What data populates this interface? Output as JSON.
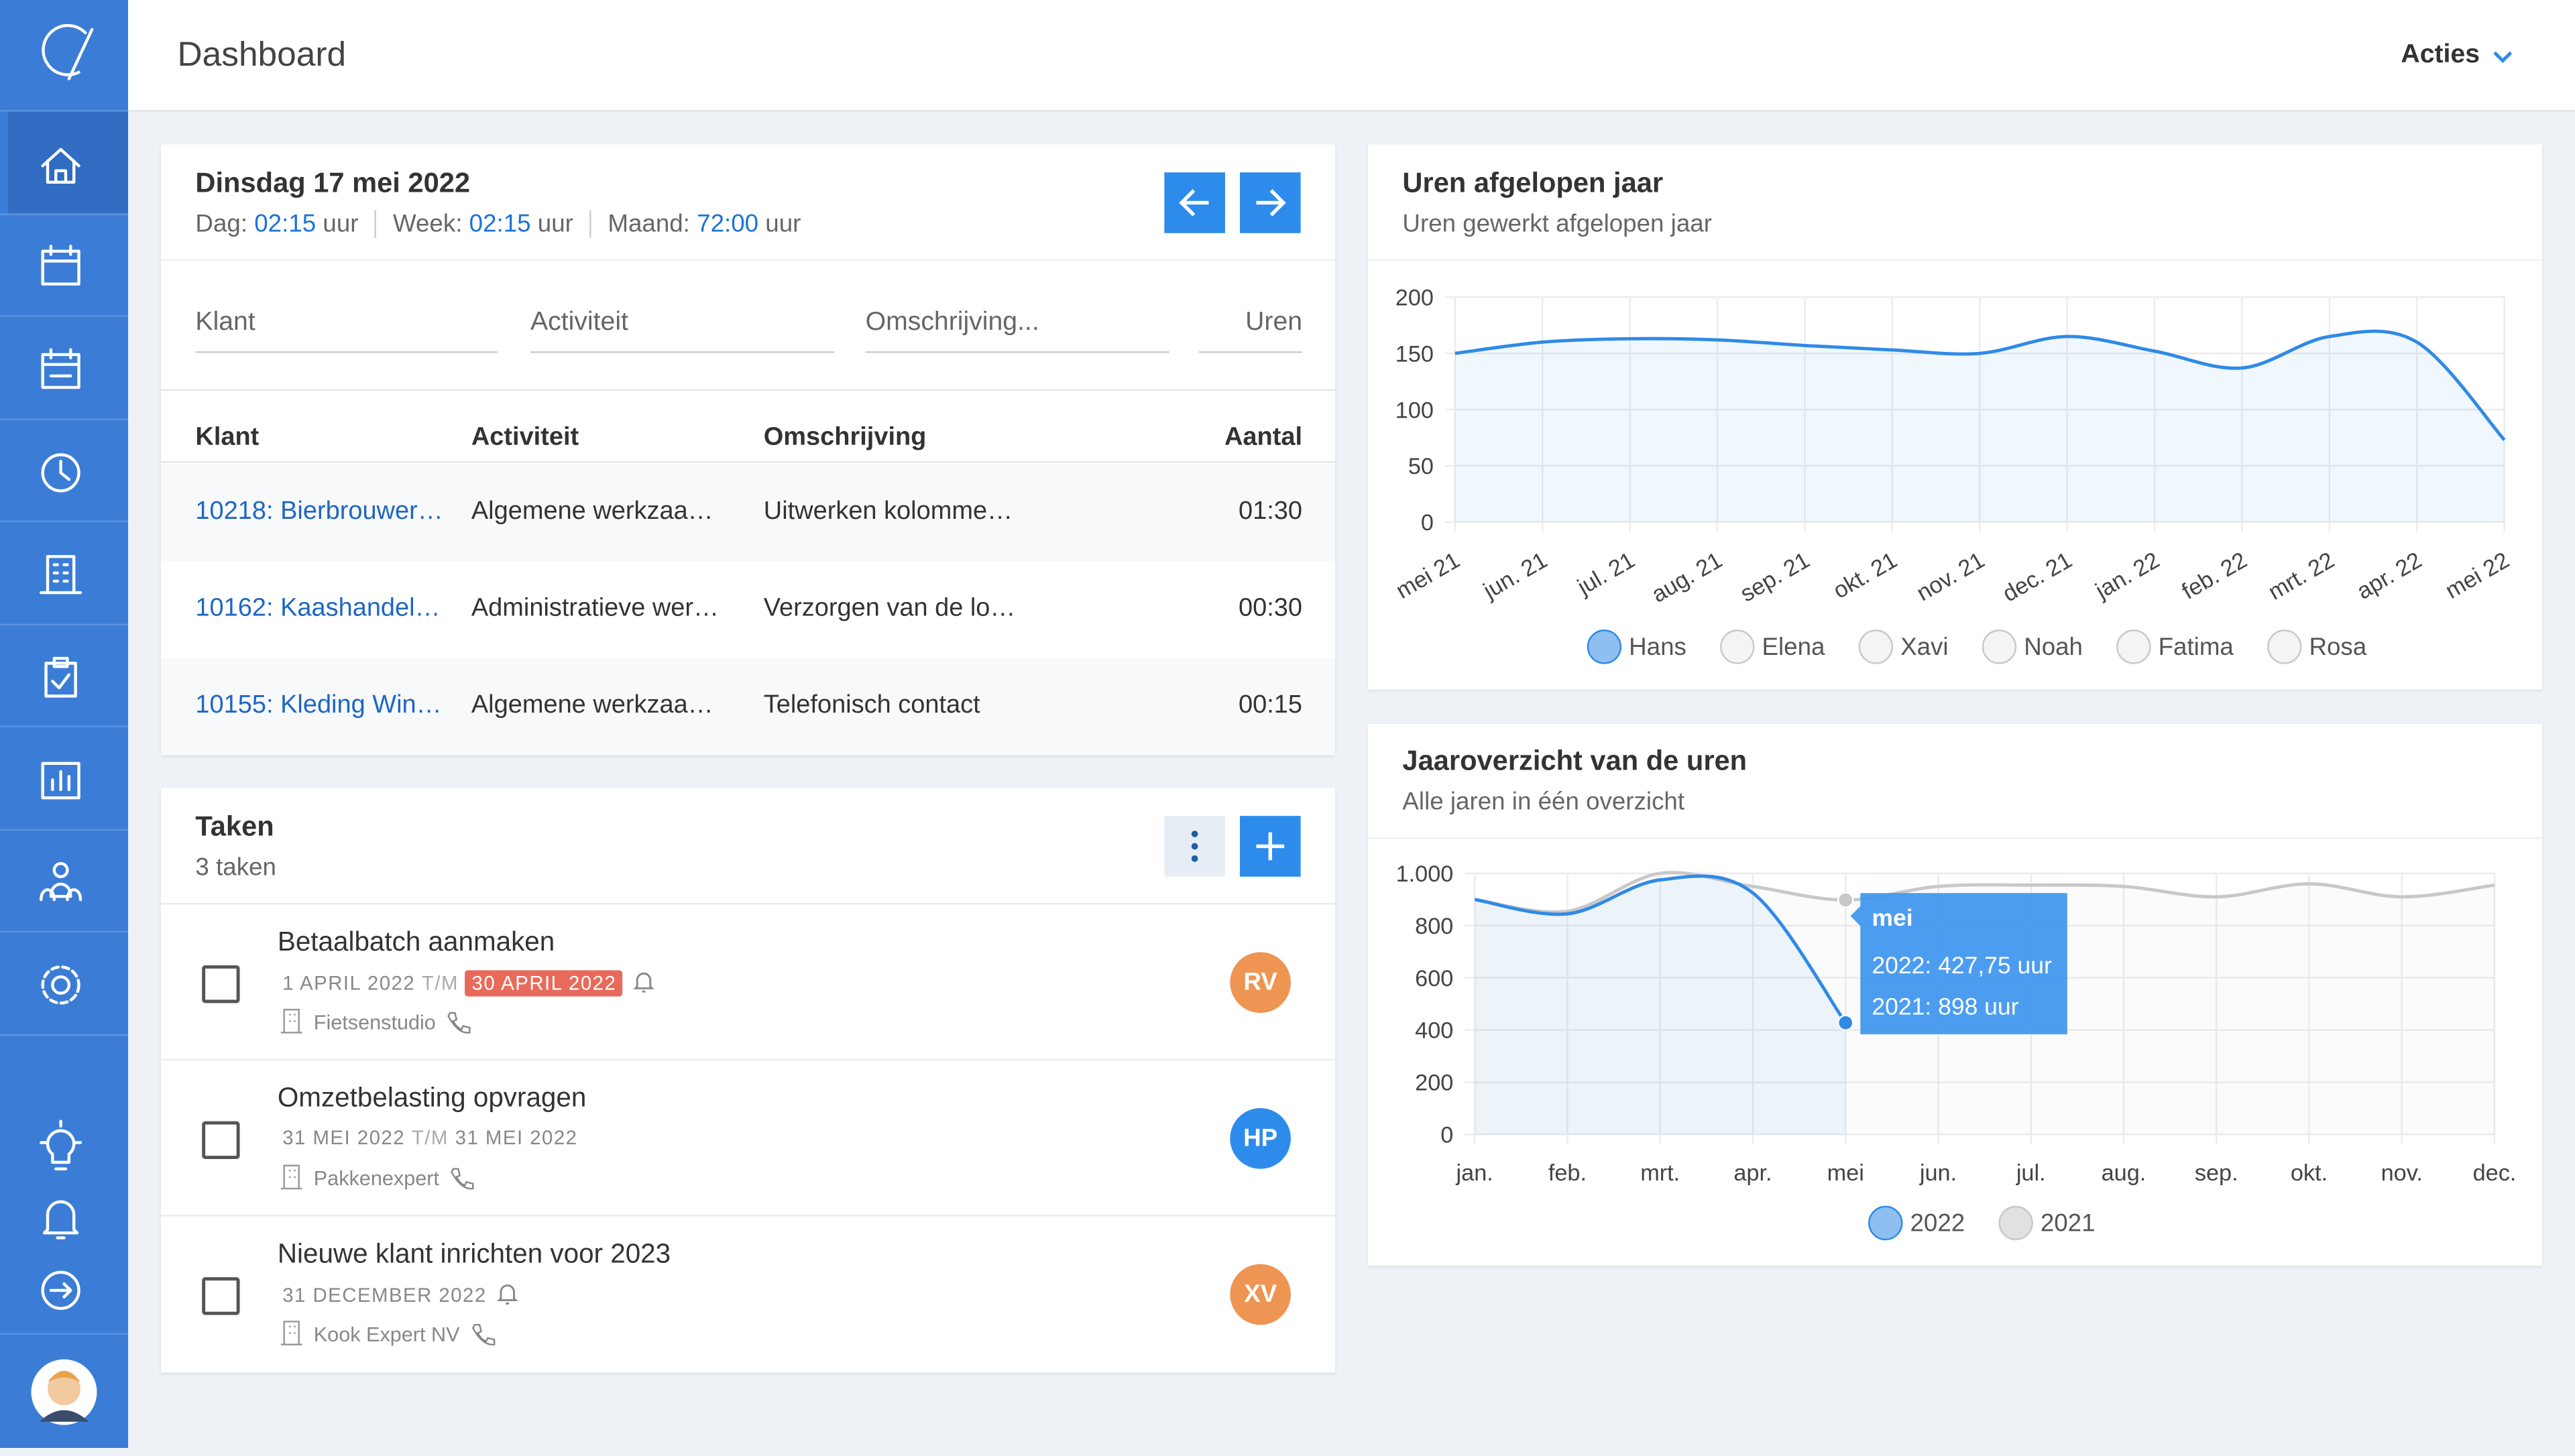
{
  "header": {
    "title": "Dashboard",
    "actions": "Acties"
  },
  "day": {
    "date": "Dinsdag 17 mei 2022",
    "totals": [
      {
        "label": "Dag:",
        "value": "02:15",
        "unit": "uur"
      },
      {
        "label": "Week:",
        "value": "02:15",
        "unit": "uur"
      },
      {
        "label": "Maand:",
        "value": "72:00",
        "unit": "uur"
      }
    ],
    "inputs": [
      "Klant",
      "Activiteit",
      "Omschrijving...",
      "Uren"
    ],
    "table": {
      "columns": [
        "Klant",
        "Activiteit",
        "Omschrijving",
        "Aantal"
      ],
      "rows": [
        [
          "10218: Bierbrouwer…",
          "Algemene werkzaa…",
          "Uitwerken kolomme…",
          "01:30"
        ],
        [
          "10162: Kaashandel…",
          "Administratieve wer…",
          "Verzorgen van de lo…",
          "00:30"
        ],
        [
          "10155: Kleding Win…",
          "Algemene werkzaa…",
          "Telefonisch contact",
          "00:15"
        ]
      ]
    }
  },
  "tasks": {
    "title": "Taken",
    "count": "3 taken",
    "items": [
      {
        "title": "Betaalbatch aanmaken",
        "start": "1 APRIL 2022",
        "range": "T/M",
        "end": "30 APRIL 2022",
        "overdue": true,
        "reminder": true,
        "client": "Fietsenstudio",
        "initials": "RV",
        "color": "#ee9553"
      },
      {
        "title": "Omzetbelasting opvragen",
        "start": "31 MEI 2022",
        "range": "T/M",
        "end": "31 MEI 2022",
        "overdue": false,
        "reminder": false,
        "client": "Pakkenexpert",
        "initials": "HP",
        "color": "#2d8ceb"
      },
      {
        "title": "Nieuwe klant inrichten voor 2023",
        "start": "31 DECEMBER 2022",
        "overdue": false,
        "reminder": true,
        "client": "Kook Expert NV",
        "initials": "XV",
        "color": "#ee9553"
      }
    ]
  },
  "charts": [
    {
      "type": "line",
      "title": "Uren afgelopen jaar",
      "subtitle": "Uren gewerkt afgelopen jaar",
      "categories": [
        "mei 21",
        "jun. 21",
        "jul. 21",
        "aug. 21",
        "sep. 21",
        "okt. 21",
        "nov. 21",
        "dec. 21",
        "jan. 22",
        "feb. 22",
        "mrt. 22",
        "apr. 22",
        "mei 22"
      ],
      "ylim": [
        0,
        200
      ],
      "yticks": [
        0,
        50,
        100,
        150,
        200
      ],
      "grid": true,
      "fill": true,
      "series": [
        {
          "name": "Hans",
          "color": "#2f8ae6",
          "values": [
            150,
            160,
            163,
            162,
            157,
            153,
            150,
            165,
            152,
            137,
            165,
            160,
            73
          ]
        },
        {
          "name": "Elena",
          "color": "#c8c8c8"
        },
        {
          "name": "Xavi",
          "color": "#c8c8c8"
        },
        {
          "name": "Noah",
          "color": "#c8c8c8"
        },
        {
          "name": "Fatima",
          "color": "#c8c8c8"
        },
        {
          "name": "Rosa",
          "color": "#c8c8c8"
        }
      ]
    },
    {
      "type": "line",
      "title": "Jaaroverzicht van de uren",
      "subtitle": "Alle jaren in één overzicht",
      "categories": [
        "jan.",
        "feb.",
        "mrt.",
        "apr.",
        "mei",
        "jun.",
        "jul.",
        "aug.",
        "sep.",
        "okt.",
        "nov.",
        "dec."
      ],
      "ylim": [
        0,
        1000
      ],
      "yticks": [
        0,
        200,
        400,
        600,
        800,
        {
          "value": 1000,
          "label": "1.000"
        }
      ],
      "grid": true,
      "fill": true,
      "series": [
        {
          "name": "2022",
          "color": "#2f8ae6",
          "values": [
            900,
            845,
            975,
            925,
            427.75,
            null,
            null,
            null,
            null,
            null,
            null,
            null
          ]
        },
        {
          "name": "2021",
          "color": "#c8c8c8",
          "values": [
            900,
            855,
            1000,
            950,
            898,
            950,
            955,
            950,
            910,
            960,
            910,
            955
          ]
        }
      ],
      "tooltip": {
        "index": 4,
        "lines": [
          "2022: 427,75 uur",
          "2021: 898 uur"
        ]
      }
    }
  ]
}
